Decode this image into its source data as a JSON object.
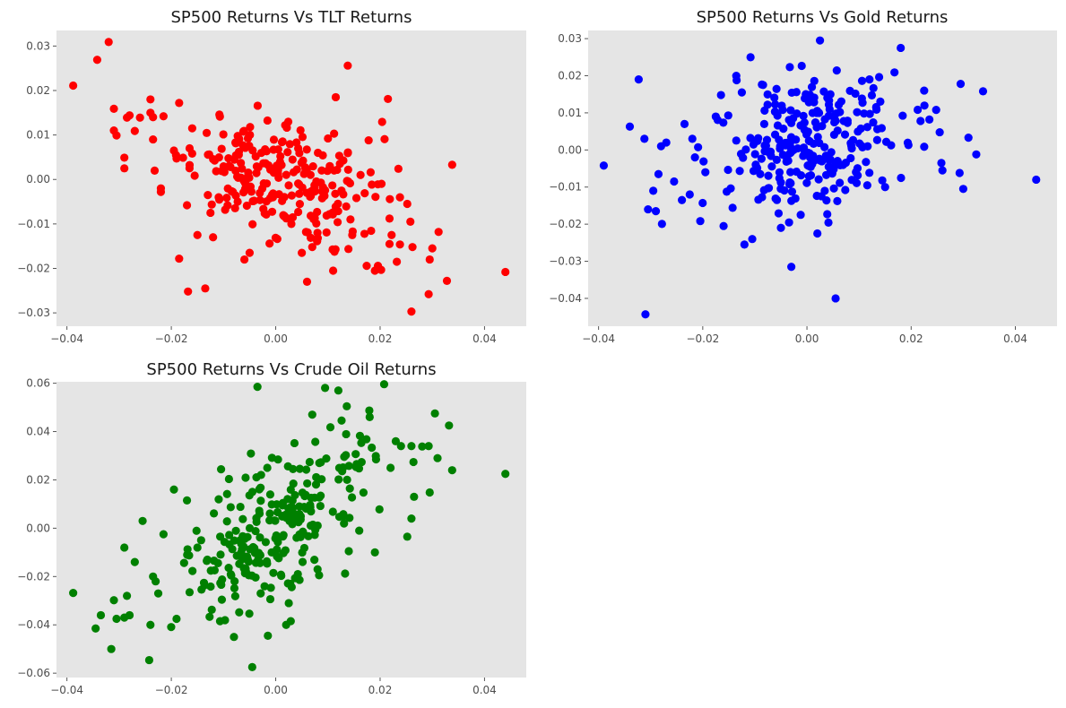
{
  "chart_data": [
    {
      "type": "scatter",
      "title": "SP500 Returns Vs TLT Returns",
      "xlabel": "",
      "ylabel": "",
      "xlim": [
        -0.042,
        0.048
      ],
      "ylim": [
        -0.033,
        0.0335
      ],
      "xticks": [
        -0.04,
        -0.02,
        0.0,
        0.02,
        0.04
      ],
      "xtick_labels": [
        "−0.04",
        "−0.02",
        "0.00",
        "0.02",
        "0.04"
      ],
      "yticks": [
        -0.03,
        -0.02,
        -0.01,
        0.0,
        0.01,
        0.02,
        0.03
      ],
      "ytick_labels": [
        "−0.03",
        "−0.02",
        "−0.01",
        "0.00",
        "0.01",
        "0.02",
        "0.03"
      ],
      "grid": false,
      "color": "#ff0000",
      "seed": 11,
      "points": [
        [
          -0.0388,
          0.0211
        ],
        [
          -0.0342,
          0.0269
        ],
        [
          -0.032,
          0.0309
        ],
        [
          -0.031,
          0.0159
        ],
        [
          -0.031,
          0.011
        ],
        [
          -0.0305,
          0.0099
        ],
        [
          -0.029,
          0.0049
        ],
        [
          -0.029,
          0.0025
        ],
        [
          -0.0285,
          0.0139
        ],
        [
          -0.028,
          0.0144
        ],
        [
          -0.027,
          0.0109
        ],
        [
          -0.026,
          0.0139
        ],
        [
          -0.024,
          0.018
        ],
        [
          -0.024,
          0.015
        ],
        [
          -0.0235,
          0.014
        ],
        [
          -0.0235,
          0.009
        ],
        [
          -0.022,
          -0.002
        ],
        [
          -0.022,
          -0.0028
        ],
        [
          -0.0215,
          0.0142
        ],
        [
          -0.0195,
          0.0065
        ],
        [
          -0.019,
          0.0047
        ],
        [
          -0.0185,
          -0.0178
        ],
        [
          -0.0185,
          0.0172
        ],
        [
          -0.017,
          -0.0058
        ],
        [
          -0.0168,
          -0.0252
        ],
        [
          -0.0165,
          0.007
        ],
        [
          -0.016,
          0.0115
        ],
        [
          -0.015,
          -0.0125
        ],
        [
          -0.0135,
          -0.0245
        ],
        [
          -0.013,
          -0.0035
        ],
        [
          -0.0125,
          -0.0075
        ],
        [
          -0.012,
          -0.013
        ],
        [
          0.044,
          -0.0208
        ],
        [
          0.0338,
          0.0033
        ],
        [
          0.0328,
          -0.0228
        ],
        [
          0.0312,
          -0.0118
        ],
        [
          0.03,
          -0.0155
        ],
        [
          0.0295,
          -0.018
        ],
        [
          0.0293,
          -0.0258
        ],
        [
          0.026,
          -0.0297
        ],
        [
          0.0258,
          -0.0095
        ],
        [
          0.0262,
          -0.0152
        ],
        [
          0.0252,
          -0.0055
        ],
        [
          0.0238,
          -0.004
        ],
        [
          0.0235,
          0.0024
        ],
        [
          0.0232,
          -0.0185
        ],
        [
          0.0218,
          -0.0145
        ],
        [
          0.0218,
          -0.0088
        ],
        [
          0.0215,
          0.0181
        ],
        [
          0.0222,
          -0.0125
        ],
        [
          0.019,
          -0.0205
        ],
        [
          0.0178,
          0.0088
        ],
        [
          0.0138,
          0.0256
        ],
        [
          0.0115,
          0.0185
        ],
        [
          0.011,
          -0.0205
        ],
        [
          0.006,
          -0.023
        ],
        [
          0.007,
          -0.0152
        ],
        [
          0.005,
          -0.0165
        ],
        [
          -0.006,
          -0.018
        ],
        [
          -0.005,
          -0.0165
        ],
        [
          0.003,
          -0.01
        ],
        [
          0.008,
          -0.012
        ]
      ],
      "random_cluster": {
        "count": 240,
        "center_x": 0.001,
        "center_y": 0.0005,
        "sx": 0.0085,
        "sy": 0.0072,
        "rho": -0.45
      }
    },
    {
      "type": "scatter",
      "title": "SP500 Returns Vs Gold Returns",
      "xlabel": "",
      "ylabel": "",
      "xlim": [
        -0.042,
        0.048
      ],
      "ylim": [
        -0.0475,
        0.0322
      ],
      "xticks": [
        -0.04,
        -0.02,
        0.0,
        0.02,
        0.04
      ],
      "xtick_labels": [
        "−0.04",
        "−0.02",
        "0.00",
        "0.02",
        "0.04"
      ],
      "yticks": [
        -0.04,
        -0.03,
        -0.02,
        -0.01,
        0.0,
        0.01,
        0.02,
        0.03
      ],
      "ytick_labels": [
        "−0.04",
        "−0.03",
        "−0.02",
        "−0.01",
        "0.00",
        "0.01",
        "0.02",
        "0.03"
      ],
      "grid": false,
      "color": "#0000ff",
      "seed": 29,
      "points": [
        [
          -0.039,
          -0.0042
        ],
        [
          -0.034,
          0.0063
        ],
        [
          -0.0323,
          0.019
        ],
        [
          -0.031,
          -0.0443
        ],
        [
          -0.0312,
          0.003
        ],
        [
          -0.0305,
          -0.016
        ],
        [
          -0.0295,
          -0.011
        ],
        [
          -0.029,
          -0.0165
        ],
        [
          -0.0285,
          -0.0065
        ],
        [
          -0.028,
          0.001
        ],
        [
          -0.027,
          0.002
        ],
        [
          -0.0255,
          -0.0085
        ],
        [
          -0.024,
          -0.0135
        ],
        [
          -0.0235,
          0.007
        ],
        [
          -0.0225,
          -0.012
        ],
        [
          -0.022,
          0.003
        ],
        [
          -0.0215,
          -0.002
        ],
        [
          -0.0195,
          -0.006
        ],
        [
          -0.0175,
          0.009
        ],
        [
          -0.0165,
          0.0148
        ],
        [
          -0.016,
          -0.0205
        ],
        [
          -0.0135,
          0.0188
        ],
        [
          -0.0125,
          0.0155
        ],
        [
          -0.012,
          -0.0255
        ],
        [
          -0.0105,
          -0.024
        ],
        [
          0.044,
          -0.008
        ],
        [
          0.0338,
          0.0158
        ],
        [
          0.0325,
          -0.0012
        ],
        [
          0.031,
          0.0033
        ],
        [
          0.03,
          -0.0105
        ],
        [
          0.0295,
          0.0178
        ],
        [
          0.0293,
          -0.0062
        ],
        [
          0.026,
          -0.0055
        ],
        [
          0.0258,
          -0.0035
        ],
        [
          0.0248,
          0.0108
        ],
        [
          0.0235,
          0.0082
        ],
        [
          0.0225,
          0.016
        ],
        [
          0.0218,
          0.0078
        ],
        [
          0.018,
          0.0275
        ],
        [
          0.0168,
          0.0209
        ],
        [
          0.015,
          -0.01
        ],
        [
          0.0025,
          0.0295
        ],
        [
          0.0055,
          -0.04
        ],
        [
          -0.003,
          -0.0315
        ],
        [
          0.0045,
          0.015
        ],
        [
          0.012,
          0.019
        ],
        [
          -0.005,
          -0.021
        ],
        [
          0.002,
          -0.0225
        ]
      ],
      "random_cluster": {
        "count": 250,
        "center_x": 0.0005,
        "center_y": 0.0005,
        "sx": 0.0085,
        "sy": 0.0095,
        "rho": 0.12
      }
    },
    {
      "type": "scatter",
      "title": "SP500 Returns Vs Crude Oil Returns",
      "xlabel": "",
      "ylabel": "",
      "xlim": [
        -0.042,
        0.048
      ],
      "ylim": [
        -0.0618,
        0.0606
      ],
      "xticks": [
        -0.04,
        -0.02,
        0.0,
        0.02,
        0.04
      ],
      "xtick_labels": [
        "−0.04",
        "−0.02",
        "0.00",
        "0.02",
        "0.04"
      ],
      "yticks": [
        -0.06,
        -0.04,
        -0.02,
        0.0,
        0.02,
        0.04,
        0.06
      ],
      "ytick_labels": [
        "−0.06",
        "−0.04",
        "−0.02",
        "0.00",
        "0.02",
        "0.04",
        "0.06"
      ],
      "grid": false,
      "color": "#008000",
      "seed": 47,
      "points": [
        [
          -0.0388,
          -0.0268
        ],
        [
          -0.0345,
          -0.0415
        ],
        [
          -0.0335,
          -0.036
        ],
        [
          -0.0315,
          -0.05
        ],
        [
          -0.031,
          -0.0298
        ],
        [
          -0.0305,
          -0.0375
        ],
        [
          -0.029,
          -0.037
        ],
        [
          -0.029,
          -0.008
        ],
        [
          -0.0285,
          -0.028
        ],
        [
          -0.028,
          -0.036
        ],
        [
          -0.027,
          -0.014
        ],
        [
          -0.0255,
          0.003
        ],
        [
          -0.024,
          -0.04
        ],
        [
          -0.0235,
          -0.02
        ],
        [
          -0.023,
          -0.022
        ],
        [
          -0.0225,
          -0.027
        ],
        [
          -0.0215,
          -0.0025
        ],
        [
          -0.0195,
          0.016
        ],
        [
          -0.019,
          -0.0375
        ],
        [
          -0.017,
          0.0115
        ],
        [
          -0.0165,
          -0.0265
        ],
        [
          -0.015,
          -0.008
        ],
        [
          0.044,
          0.0225
        ],
        [
          0.0338,
          0.024
        ],
        [
          0.0332,
          0.0425
        ],
        [
          0.031,
          0.029
        ],
        [
          0.0305,
          0.0475
        ],
        [
          0.0295,
          0.0148
        ],
        [
          0.0293,
          0.034
        ],
        [
          0.0265,
          0.013
        ],
        [
          0.026,
          0.004
        ],
        [
          0.0252,
          -0.0035
        ],
        [
          0.026,
          0.034
        ],
        [
          0.024,
          0.034
        ],
        [
          0.023,
          0.036
        ],
        [
          0.022,
          0.025
        ],
        [
          0.019,
          -0.01
        ],
        [
          0.018,
          0.046
        ],
        [
          0.012,
          0.057
        ],
        [
          0.007,
          0.047
        ],
        [
          -0.0035,
          0.0585
        ],
        [
          -0.0045,
          -0.0575
        ],
        [
          -0.0015,
          -0.0445
        ],
        [
          0.002,
          -0.04
        ],
        [
          0.0025,
          -0.031
        ],
        [
          0.016,
          -0.001
        ],
        [
          0.014,
          -0.0095
        ],
        [
          -0.008,
          -0.045
        ]
      ],
      "random_cluster": {
        "count": 250,
        "center_x": 0.001,
        "center_y": 0.0015,
        "sx": 0.0085,
        "sy": 0.018,
        "rho": 0.62
      }
    }
  ]
}
